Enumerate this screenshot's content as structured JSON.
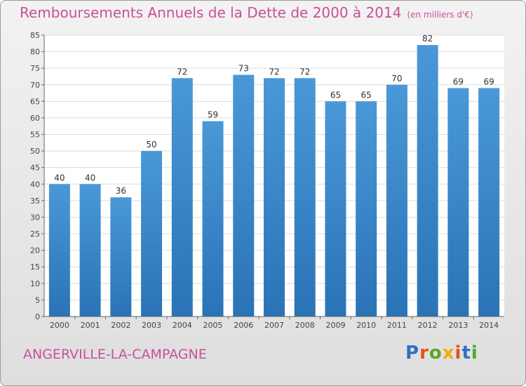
{
  "title": "Remboursements Annuels de la Dette de 2000 à 2014",
  "unit_note": "(en milliers d'€)",
  "city": "ANGERVILLE-LA-CAMPAGNE",
  "logo": "Proxiti",
  "colors": {
    "bar": "#4a98d8",
    "bar_dark": "#2a73b6",
    "title": "#c94f9a"
  },
  "chart_data": {
    "type": "bar",
    "categories": [
      "2000",
      "2001",
      "2002",
      "2003",
      "2004",
      "2005",
      "2006",
      "2007",
      "2008",
      "2009",
      "2010",
      "2011",
      "2012",
      "2013",
      "2014"
    ],
    "values": [
      40,
      40,
      36,
      50,
      72,
      59,
      73,
      72,
      72,
      65,
      65,
      70,
      82,
      69,
      69
    ],
    "ylim": [
      0,
      85
    ],
    "yticks": [
      0,
      5,
      10,
      15,
      20,
      25,
      30,
      35,
      40,
      45,
      50,
      55,
      60,
      65,
      70,
      75,
      80,
      85
    ],
    "grid": true,
    "legend": "none"
  }
}
